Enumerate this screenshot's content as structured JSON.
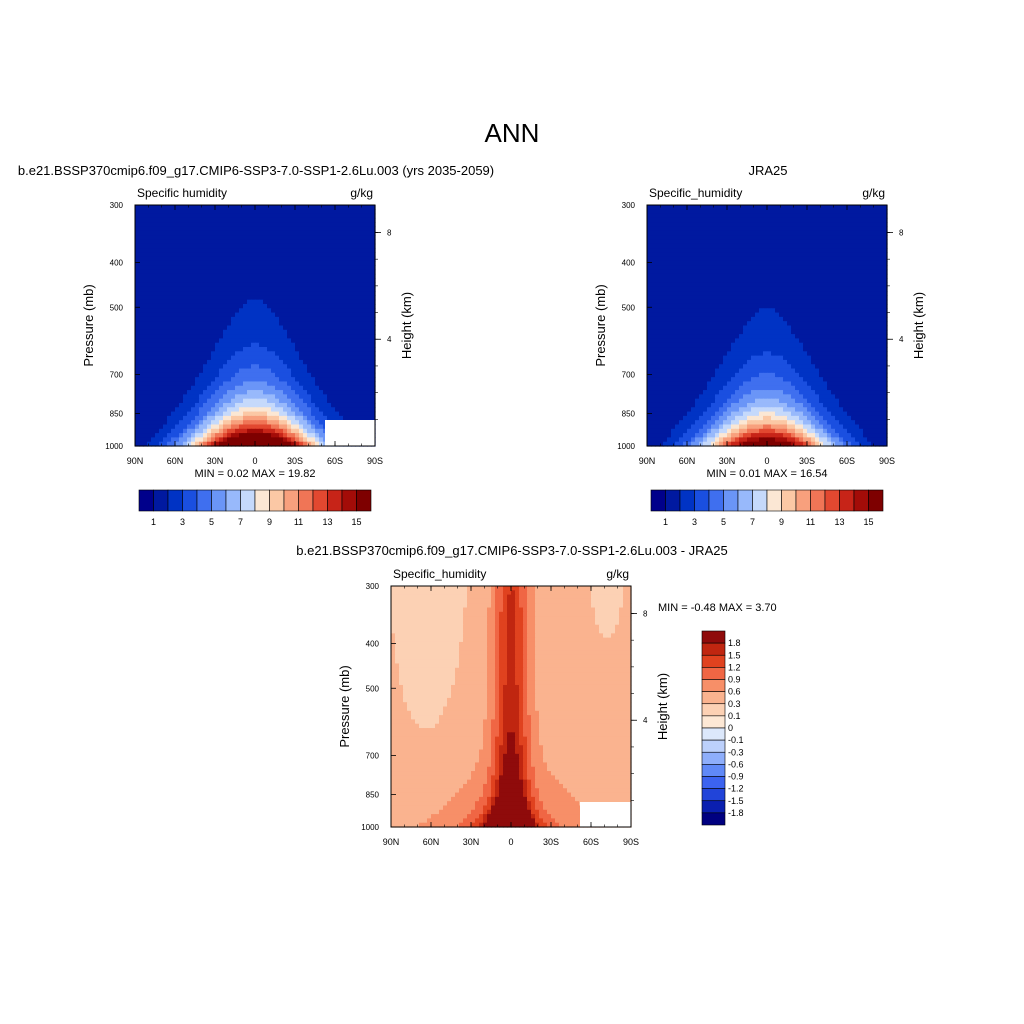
{
  "page_title": "ANN",
  "palette": {
    "abs": [
      "#00008b",
      "#0019a0",
      "#0033c4",
      "#1a4fe0",
      "#3f6fef",
      "#6a95f7",
      "#98b9fb",
      "#c5d9fb",
      "#fbe7d4",
      "#fbc8a5",
      "#f8a07d",
      "#f07556",
      "#e24830",
      "#c72418",
      "#a30c08",
      "#7e0000"
    ],
    "diff": [
      "#000080",
      "#0a1fb0",
      "#2144d9",
      "#3c63ef",
      "#6089f7",
      "#8eaefb",
      "#bcd0fb",
      "#dce8fb",
      "#fde8d5",
      "#fcd1b4",
      "#fab38f",
      "#f78f68",
      "#f06644",
      "#e0421f",
      "#c02610",
      "#8f0b0b"
    ]
  },
  "panels": {
    "p1": {
      "title": "b.e21.BSSP370cmip6.f09_g17.CMIP6-SSP3-7.0-SSP1-2.6Lu.003 (yrs 2035-2059)",
      "var_label": "Specific humidity",
      "units": "g/kg",
      "ylabel": "Pressure (mb)",
      "y2label": "Height (km)",
      "min_max": "MIN =   0.02  MAX =  19.82"
    },
    "p2": {
      "title": "JRA25",
      "var_label": "Specific_humidity",
      "units": "g/kg",
      "ylabel": "Pressure (mb)",
      "y2label": "Height (km)",
      "min_max": "MIN =   0.01  MAX =  16.54"
    },
    "p3": {
      "title": "b.e21.BSSP370cmip6.f09_g17.CMIP6-SSP3-7.0-SSP1-2.6Lu.003 - JRA25",
      "var_label": "Specific_humidity",
      "units": "g/kg",
      "ylabel": "Pressure (mb)",
      "y2label": "Height (km)",
      "min_max": "MIN =  -0.48  MAX =   3.70"
    }
  },
  "chart_data": [
    {
      "type": "heatmap",
      "name": "p1",
      "x_ticks": [
        "90N",
        "60N",
        "30N",
        "0",
        "30S",
        "60S",
        "90S"
      ],
      "y_ticks": [
        "300",
        "400",
        "500",
        "700",
        "850",
        "1000"
      ],
      "y2_ticks": [
        "8",
        "4"
      ],
      "colorbar_labels": [
        "1",
        "3",
        "5",
        "7",
        "9",
        "11",
        "13",
        "15"
      ],
      "levels": [
        0,
        1,
        2,
        3,
        4,
        5,
        6,
        7,
        8,
        9,
        10,
        11,
        12,
        13,
        14,
        15
      ],
      "field_max": 19.82,
      "field_min": 0.02
    },
    {
      "type": "heatmap",
      "name": "p2",
      "x_ticks": [
        "90N",
        "60N",
        "30N",
        "0",
        "30S",
        "60S",
        "90S"
      ],
      "y_ticks": [
        "300",
        "400",
        "500",
        "700",
        "850",
        "1000"
      ],
      "y2_ticks": [
        "8",
        "4"
      ],
      "colorbar_labels": [
        "1",
        "3",
        "5",
        "7",
        "9",
        "11",
        "13",
        "15"
      ],
      "levels": [
        0,
        1,
        2,
        3,
        4,
        5,
        6,
        7,
        8,
        9,
        10,
        11,
        12,
        13,
        14,
        15
      ],
      "field_max": 16.54,
      "field_min": 0.01
    },
    {
      "type": "heatmap",
      "name": "p3",
      "x_ticks": [
        "90N",
        "60N",
        "30N",
        "0",
        "30S",
        "60S",
        "90S"
      ],
      "y_ticks": [
        "300",
        "400",
        "500",
        "700",
        "850",
        "1000"
      ],
      "y2_ticks": [
        "8",
        "4"
      ],
      "colorbar_labels": [
        "1.8",
        "1.5",
        "1.2",
        "0.9",
        "0.6",
        "0.3",
        "0.1",
        "0",
        "-0.1",
        "-0.3",
        "-0.6",
        "-0.9",
        "-1.2",
        "-1.5",
        "-1.8"
      ],
      "levels": [
        -1.8,
        -1.5,
        -1.2,
        -0.9,
        -0.6,
        -0.3,
        -0.1,
        0,
        0.1,
        0.3,
        0.6,
        0.9,
        1.2,
        1.5,
        1.8
      ],
      "field_max": 3.7,
      "field_min": -0.48
    }
  ]
}
